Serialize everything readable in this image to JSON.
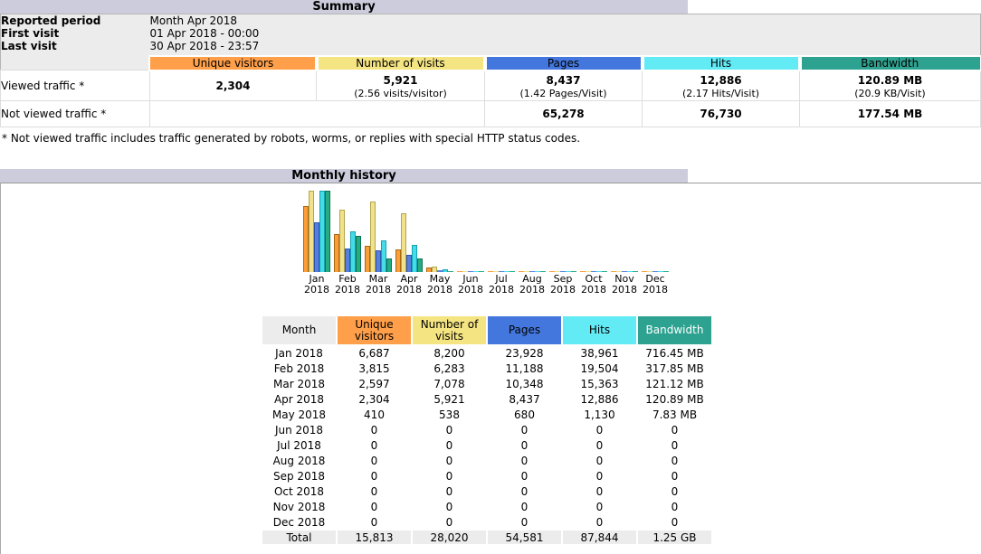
{
  "colors": {
    "title_bar_bg": "#CCCCDD",
    "headers": {
      "unique_visitors": "#FF9F49",
      "visits": "#F5E482",
      "pages": "#4477DD",
      "hits": "#62EAF5",
      "bandwidth": "#2EA290",
      "month_bg": "#ECECEC",
      "bandwidth_text": "#FFFFFF"
    },
    "chart": [
      {
        "fill": "#FB9E3A",
        "border": "#A96812"
      },
      {
        "fill": "#F0E18A",
        "border": "#B3A44E"
      },
      {
        "fill": "#5580E0",
        "border": "#2C55AA"
      },
      {
        "fill": "#45DCE8",
        "border": "#12A3B2"
      },
      {
        "fill": "#27AB82",
        "border": "#0E7351"
      }
    ]
  },
  "summary": {
    "title": "Summary",
    "reported_period_label": "Reported period",
    "reported_period_value": "Month Apr 2018",
    "first_visit_label": "First visit",
    "first_visit_value": "01 Apr 2018 - 00:00",
    "last_visit_label": "Last visit",
    "last_visit_value": "30 Apr 2018 - 23:57",
    "columns": [
      "Unique visitors",
      "Number of visits",
      "Pages",
      "Hits",
      "Bandwidth"
    ],
    "viewed_label": "Viewed traffic *",
    "viewed": {
      "unique_visitors": "2,304",
      "visits": "5,921",
      "visits_sub": "(2.56 visits/visitor)",
      "pages": "8,437",
      "pages_sub": "(1.42 Pages/Visit)",
      "hits": "12,886",
      "hits_sub": "(2.17 Hits/Visit)",
      "bandwidth": "120.89 MB",
      "bandwidth_sub": "(20.9 KB/Visit)"
    },
    "not_viewed_label": "Not viewed traffic *",
    "not_viewed": {
      "pages": "65,278",
      "hits": "76,730",
      "bandwidth": "177.54 MB"
    },
    "footnote": "* Not viewed traffic includes traffic generated by robots, worms, or replies with special HTTP status codes."
  },
  "monthly": {
    "title": "Monthly history",
    "table": {
      "headers": [
        "Month",
        "Unique visitors",
        "Number of visits",
        "Pages",
        "Hits",
        "Bandwidth"
      ],
      "rows": [
        [
          "Jan 2018",
          "6,687",
          "8,200",
          "23,928",
          "38,961",
          "716.45 MB"
        ],
        [
          "Feb 2018",
          "3,815",
          "6,283",
          "11,188",
          "19,504",
          "317.85 MB"
        ],
        [
          "Mar 2018",
          "2,597",
          "7,078",
          "10,348",
          "15,363",
          "121.12 MB"
        ],
        [
          "Apr 2018",
          "2,304",
          "5,921",
          "8,437",
          "12,886",
          "120.89 MB"
        ],
        [
          "May 2018",
          "410",
          "538",
          "680",
          "1,130",
          "7.83 MB"
        ],
        [
          "Jun 2018",
          "0",
          "0",
          "0",
          "0",
          "0"
        ],
        [
          "Jul 2018",
          "0",
          "0",
          "0",
          "0",
          "0"
        ],
        [
          "Aug 2018",
          "0",
          "0",
          "0",
          "0",
          "0"
        ],
        [
          "Sep 2018",
          "0",
          "0",
          "0",
          "0",
          "0"
        ],
        [
          "Oct 2018",
          "0",
          "0",
          "0",
          "0",
          "0"
        ],
        [
          "Nov 2018",
          "0",
          "0",
          "0",
          "0",
          "0"
        ],
        [
          "Dec 2018",
          "0",
          "0",
          "0",
          "0",
          "0"
        ]
      ],
      "total": [
        "Total",
        "15,813",
        "28,020",
        "54,581",
        "87,844",
        "1.25 GB"
      ]
    }
  },
  "chart_data": {
    "type": "bar",
    "title": "Monthly history",
    "categories": [
      "Jan 2018",
      "Feb 2018",
      "Mar 2018",
      "Apr 2018",
      "May 2018",
      "Jun 2018",
      "Jul 2018",
      "Aug 2018",
      "Sep 2018",
      "Oct 2018",
      "Nov 2018",
      "Dec 2018"
    ],
    "series": [
      {
        "name": "Unique visitors",
        "values": [
          6687,
          3815,
          2597,
          2304,
          410,
          0,
          0,
          0,
          0,
          0,
          0,
          0
        ]
      },
      {
        "name": "Number of visits",
        "values": [
          8200,
          6283,
          7078,
          5921,
          538,
          0,
          0,
          0,
          0,
          0,
          0,
          0
        ]
      },
      {
        "name": "Pages",
        "values": [
          23928,
          11188,
          10348,
          8437,
          680,
          0,
          0,
          0,
          0,
          0,
          0,
          0
        ]
      },
      {
        "name": "Hits",
        "values": [
          38961,
          19504,
          15363,
          12886,
          1130,
          0,
          0,
          0,
          0,
          0,
          0,
          0
        ]
      },
      {
        "name": "Bandwidth (MB)",
        "values": [
          716.45,
          317.85,
          121.12,
          120.89,
          7.83,
          0,
          0,
          0,
          0,
          0,
          0,
          0
        ]
      }
    ],
    "scaling": "each bar scaled to series-group max: visitors/visits -> 8200, pages/hits -> 38961, bandwidth -> 716.45",
    "legend_position": "none",
    "grid": false,
    "xlabel": "",
    "ylabel": ""
  }
}
